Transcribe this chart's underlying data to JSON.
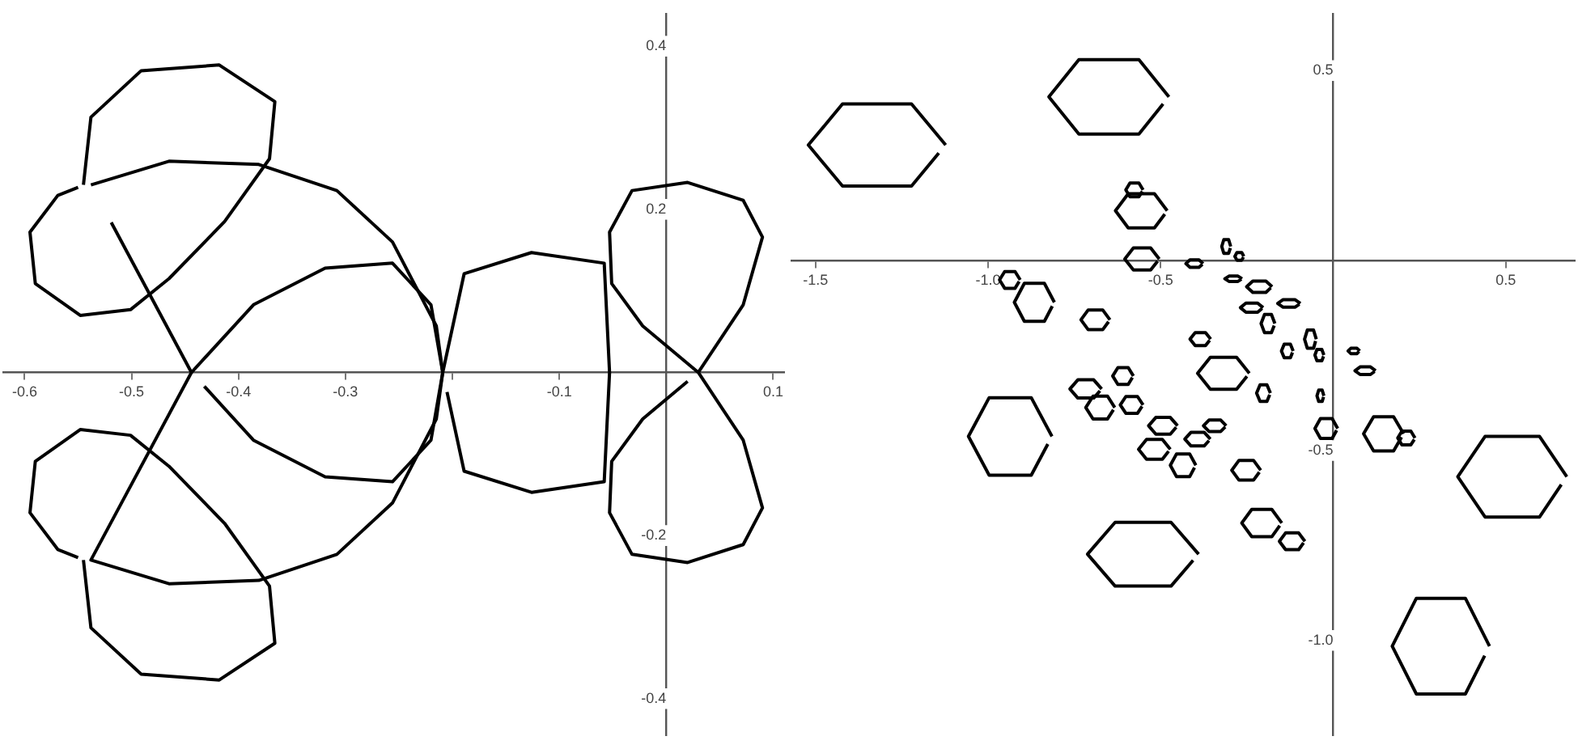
{
  "chart_data": [
    {
      "type": "line",
      "marker": "none",
      "xlim": [
        -0.62,
        0.11
      ],
      "ylim": [
        -0.445,
        0.44
      ],
      "xticks": [
        -0.6,
        -0.5,
        -0.4,
        -0.3,
        {
          "value": -0.2,
          "label": null
        },
        -0.1,
        0.1
      ],
      "yticks": [
        -0.4,
        -0.2,
        0.2,
        0.4
      ],
      "series": [
        {
          "color": "#000000",
          "x": [
            0.03,
            0.072,
            0.09,
            0.072,
            0.02,
            -0.032,
            -0.053,
            -0.051,
            -0.022,
            0.03,
            0.072,
            0.09,
            0.072,
            0.02,
            -0.032,
            -0.053,
            -0.051,
            -0.022,
            0.02
          ],
          "values": [
            0,
            0.083,
            0.166,
            0.211,
            0.233,
            0.223,
            0.172,
            0.109,
            0.057,
            0,
            -0.083,
            -0.166,
            -0.211,
            -0.233,
            -0.223,
            -0.172,
            -0.109,
            -0.057,
            -0.011
          ]
        },
        {
          "color": "#000000",
          "x": [
            -0.545,
            -0.538,
            -0.491,
            -0.418,
            -0.366,
            -0.371,
            -0.413,
            -0.465,
            -0.501,
            -0.548,
            -0.59,
            -0.595,
            -0.569,
            -0.55
          ],
          "values": [
            0.23,
            0.313,
            0.37,
            0.377,
            0.332,
            0.262,
            0.185,
            0.115,
            0.077,
            0.07,
            0.109,
            0.172,
            0.217,
            0.227
          ]
        },
        {
          "color": "#000000",
          "x": [
            -0.545,
            -0.538,
            -0.491,
            -0.418,
            -0.366,
            -0.371,
            -0.413,
            -0.465,
            -0.501,
            -0.548,
            -0.59,
            -0.595,
            -0.569,
            -0.55
          ],
          "values": [
            -0.23,
            -0.313,
            -0.37,
            -0.377,
            -0.332,
            -0.262,
            -0.185,
            -0.115,
            -0.077,
            -0.07,
            -0.109,
            -0.172,
            -0.217,
            -0.227
          ]
        },
        {
          "color": "#000000",
          "x": [
            -0.444,
            -0.386,
            -0.319,
            -0.256,
            -0.22,
            -0.209,
            -0.22,
            -0.256,
            -0.319,
            -0.386,
            -0.432
          ],
          "values": [
            0,
            0.083,
            0.128,
            0.134,
            0.083,
            0,
            -0.083,
            -0.134,
            -0.128,
            -0.083,
            -0.017
          ]
        },
        {
          "color": "#000000",
          "x": [
            -0.209,
            -0.189,
            -0.126,
            -0.058,
            -0.053,
            -0.058,
            -0.126,
            -0.189,
            -0.205
          ],
          "values": [
            0,
            0.121,
            0.147,
            0.134,
            0,
            -0.134,
            -0.147,
            -0.121,
            -0.024
          ]
        },
        {
          "color": "#000000",
          "x": [
            -0.538,
            -0.465,
            -0.381,
            -0.308,
            -0.256,
            -0.215,
            -0.209,
            -0.215,
            -0.256,
            -0.308,
            -0.381,
            -0.465,
            -0.538,
            -0.444,
            -0.519
          ],
          "values": [
            0.23,
            0.259,
            0.255,
            0.223,
            0.16,
            0.057,
            0,
            -0.057,
            -0.16,
            -0.223,
            -0.255,
            -0.259,
            -0.23,
            0,
            0.184
          ]
        }
      ]
    },
    {
      "type": "line",
      "marker": "none",
      "xlim": [
        -1.57,
        0.7
      ],
      "ylim": [
        -1.25,
        0.65
      ],
      "xticks": [
        -1.5,
        {
          "value": -1,
          "label": "-1.0"
        },
        -0.5,
        0.5
      ],
      "yticks": [
        0.5,
        -0.5,
        {
          "value": -1,
          "label": "-1.0"
        }
      ],
      "series": [
        {
          "color": "#000000",
          "x": [
            -1.123,
            -1.222,
            -1.422,
            -1.521,
            -1.422,
            -1.222,
            -1.143
          ],
          "values": [
            0.304,
            0.412,
            0.412,
            0.304,
            0.196,
            0.196,
            0.283
          ]
        },
        {
          "color": "#000000",
          "x": [
            -0.476,
            -0.563,
            -0.737,
            -0.824,
            -0.737,
            -0.563,
            -0.493
          ],
          "values": [
            0.431,
            0.529,
            0.529,
            0.431,
            0.333,
            0.333,
            0.412
          ]
        },
        {
          "color": "#000000",
          "x": [
            -0.815,
            -0.875,
            -0.997,
            -1.057,
            -0.997,
            -0.875,
            -0.827
          ],
          "values": [
            -0.463,
            -0.361,
            -0.361,
            -0.463,
            -0.565,
            -0.565,
            -0.483
          ]
        },
        {
          "color": "#000000",
          "x": [
            -0.39,
            -0.47,
            -0.632,
            -0.712,
            -0.632,
            -0.47,
            -0.406
          ],
          "values": [
            -0.773,
            -0.689,
            -0.689,
            -0.773,
            -0.857,
            -0.857,
            -0.789
          ]
        },
        {
          "color": "#000000",
          "x": [
            0.677,
            0.598,
            0.44,
            0.361,
            0.44,
            0.598,
            0.661
          ],
          "values": [
            -0.569,
            -0.463,
            -0.463,
            -0.569,
            -0.675,
            -0.675,
            -0.59
          ]
        },
        {
          "color": "#000000",
          "x": [
            0.453,
            0.383,
            0.241,
            0.171,
            0.241,
            0.383,
            0.439
          ],
          "values": [
            -1.015,
            -0.889,
            -0.889,
            -1.015,
            -1.141,
            -1.141,
            -1.04
          ]
        },
        {
          "color": "#000000",
          "x": [
            -0.481,
            -0.518,
            -0.594,
            -0.631,
            -0.594,
            -0.518,
            -0.488
          ],
          "values": [
            0.131,
            0.176,
            0.176,
            0.131,
            0.086,
            0.086,
            0.122
          ]
        },
        {
          "color": "#000000",
          "x": [
            -0.551,
            -0.563,
            -0.589,
            -0.601,
            -0.589,
            -0.563,
            -0.553
          ],
          "values": [
            0.186,
            0.204,
            0.204,
            0.186,
            0.168,
            0.168,
            0.182
          ]
        },
        {
          "color": "#000000",
          "x": [
            -0.504,
            -0.529,
            -0.579,
            -0.604,
            -0.579,
            -0.529,
            -0.509
          ],
          "values": [
            0.004,
            0.033,
            0.033,
            0.004,
            -0.025,
            -0.025,
            -0.002
          ]
        },
        {
          "color": "#000000",
          "x": [
            -0.808,
            -0.837,
            -0.895,
            -0.924,
            -0.895,
            -0.837,
            -0.814
          ],
          "values": [
            -0.11,
            -0.06,
            -0.06,
            -0.11,
            -0.16,
            -0.16,
            -0.12
          ]
        },
        {
          "color": "#000000",
          "x": [
            -0.647,
            -0.668,
            -0.71,
            -0.731,
            -0.71,
            -0.668,
            -0.651
          ],
          "values": [
            -0.156,
            -0.13,
            -0.13,
            -0.156,
            -0.182,
            -0.182,
            -0.161
          ]
        },
        {
          "color": "#000000",
          "x": [
            -0.243,
            -0.28,
            -0.356,
            -0.393,
            -0.356,
            -0.28,
            -0.25
          ],
          "values": [
            -0.297,
            -0.255,
            -0.255,
            -0.297,
            -0.339,
            -0.339,
            -0.305
          ]
        },
        {
          "color": "#000000",
          "x": [
            -0.907,
            -0.922,
            -0.952,
            -0.967,
            -0.952,
            -0.922,
            -0.91
          ],
          "values": [
            -0.051,
            -0.029,
            -0.029,
            -0.051,
            -0.073,
            -0.073,
            -0.055
          ]
        },
        {
          "color": "#000000",
          "x": [
            0.013,
            -0.003,
            -0.037,
            -0.053,
            -0.037,
            -0.003,
            0.01
          ],
          "values": [
            -0.442,
            -0.416,
            -0.416,
            -0.442,
            -0.468,
            -0.468,
            -0.447
          ]
        },
        {
          "color": "#000000",
          "x": [
            0.204,
            0.175,
            0.117,
            0.088,
            0.117,
            0.175,
            0.198
          ],
          "values": [
            -0.456,
            -0.411,
            -0.411,
            -0.456,
            -0.501,
            -0.501,
            -0.465
          ]
        },
        {
          "color": "#000000",
          "x": [
            0.237,
            0.225,
            0.199,
            0.187,
            0.199,
            0.225,
            0.235
          ],
          "values": [
            -0.467,
            -0.449,
            -0.449,
            -0.467,
            -0.485,
            -0.485,
            -0.471
          ]
        },
        {
          "color": "#000000",
          "x": [
            -0.21,
            -0.231,
            -0.273,
            -0.294,
            -0.273,
            -0.231,
            -0.214
          ],
          "values": [
            -0.552,
            -0.526,
            -0.526,
            -0.552,
            -0.578,
            -0.578,
            -0.557
          ]
        },
        {
          "color": "#000000",
          "x": [
            -0.149,
            -0.178,
            -0.236,
            -0.265,
            -0.236,
            -0.178,
            -0.155
          ],
          "values": [
            -0.691,
            -0.655,
            -0.655,
            -0.691,
            -0.727,
            -0.727,
            -0.698
          ]
        },
        {
          "color": "#000000",
          "x": [
            -0.082,
            -0.1,
            -0.138,
            -0.156,
            -0.138,
            -0.1,
            -0.086
          ],
          "values": [
            -0.739,
            -0.717,
            -0.717,
            -0.739,
            -0.761,
            -0.761,
            -0.743
          ]
        },
        {
          "color": "#000000",
          "x": [
            -0.671,
            -0.694,
            -0.74,
            -0.763,
            -0.74,
            -0.694,
            -0.676
          ],
          "values": [
            -0.338,
            -0.314,
            -0.314,
            -0.338,
            -0.362,
            -0.362,
            -0.343
          ]
        },
        {
          "color": "#000000",
          "x": [
            -0.633,
            -0.654,
            -0.696,
            -0.717,
            -0.696,
            -0.654,
            -0.637
          ],
          "values": [
            -0.387,
            -0.357,
            -0.357,
            -0.387,
            -0.417,
            -0.417,
            -0.393
          ]
        },
        {
          "color": "#000000",
          "x": [
            -0.551,
            -0.567,
            -0.601,
            -0.617,
            -0.601,
            -0.567,
            -0.554
          ],
          "values": [
            -0.38,
            -0.358,
            -0.358,
            -0.38,
            -0.402,
            -0.402,
            -0.384
          ]
        },
        {
          "color": "#000000",
          "x": [
            -0.579,
            -0.594,
            -0.624,
            -0.639,
            -0.624,
            -0.594,
            -0.582
          ],
          "values": [
            -0.304,
            -0.282,
            -0.282,
            -0.304,
            -0.326,
            -0.326,
            -0.308
          ]
        },
        {
          "color": "#000000",
          "x": [
            -0.451,
            -0.472,
            -0.514,
            -0.535,
            -0.514,
            -0.472,
            -0.455
          ],
          "values": [
            -0.435,
            -0.413,
            -0.413,
            -0.435,
            -0.457,
            -0.457,
            -0.439
          ]
        },
        {
          "color": "#000000",
          "x": [
            -0.472,
            -0.495,
            -0.541,
            -0.564,
            -0.541,
            -0.495,
            -0.477
          ],
          "values": [
            -0.497,
            -0.471,
            -0.471,
            -0.497,
            -0.523,
            -0.523,
            -0.502
          ]
        },
        {
          "color": "#000000",
          "x": [
            -0.398,
            -0.416,
            -0.454,
            -0.472,
            -0.454,
            -0.416,
            -0.402
          ],
          "values": [
            -0.539,
            -0.509,
            -0.509,
            -0.539,
            -0.569,
            -0.569,
            -0.545
          ]
        },
        {
          "color": "#000000",
          "x": [
            -0.356,
            -0.374,
            -0.412,
            -0.43,
            -0.412,
            -0.374,
            -0.36
          ],
          "values": [
            -0.47,
            -0.452,
            -0.452,
            -0.47,
            -0.488,
            -0.488,
            -0.474
          ]
        },
        {
          "color": "#000000",
          "x": [
            -0.31,
            -0.326,
            -0.36,
            -0.376,
            -0.36,
            -0.326,
            -0.313
          ],
          "values": [
            -0.435,
            -0.42,
            -0.42,
            -0.435,
            -0.45,
            -0.45,
            -0.438
          ]
        },
        {
          "color": "#000000",
          "x": [
            -0.377,
            -0.389,
            -0.415,
            -0.427,
            -0.415,
            -0.389,
            -0.379
          ],
          "values": [
            -0.008,
            0.002,
            0.002,
            -0.008,
            -0.018,
            -0.018,
            -0.01
          ]
        },
        {
          "color": "#000000",
          "x": [
            -0.297,
            -0.303,
            -0.317,
            -0.323,
            -0.317,
            -0.303,
            -0.298
          ],
          "values": [
            0.037,
            0.055,
            0.055,
            0.037,
            0.019,
            0.019,
            0.033
          ]
        },
        {
          "color": "#000000",
          "x": [
            -0.259,
            -0.265,
            -0.279,
            -0.285,
            -0.279,
            -0.265,
            -0.26
          ],
          "values": [
            0.011,
            0.021,
            0.021,
            0.011,
            0.001,
            0.001,
            0.009
          ]
        },
        {
          "color": "#000000",
          "x": [
            -0.264,
            -0.276,
            -0.302,
            -0.314,
            -0.302,
            -0.276,
            -0.266
          ],
          "values": [
            -0.048,
            -0.041,
            -0.041,
            -0.048,
            -0.055,
            -0.055,
            -0.049
          ]
        },
        {
          "color": "#000000",
          "x": [
            -0.177,
            -0.195,
            -0.233,
            -0.251,
            -0.233,
            -0.195,
            -0.181
          ],
          "values": [
            -0.069,
            -0.054,
            -0.054,
            -0.069,
            -0.084,
            -0.084,
            -0.072
          ]
        },
        {
          "color": "#000000",
          "x": [
            -0.203,
            -0.219,
            -0.253,
            -0.269,
            -0.253,
            -0.219,
            -0.206
          ],
          "values": [
            -0.124,
            -0.112,
            -0.112,
            -0.124,
            -0.136,
            -0.136,
            -0.126
          ]
        },
        {
          "color": "#000000",
          "x": [
            -0.169,
            -0.179,
            -0.199,
            -0.209,
            -0.199,
            -0.179,
            -0.171
          ],
          "values": [
            -0.166,
            -0.142,
            -0.142,
            -0.166,
            -0.19,
            -0.19,
            -0.171
          ]
        },
        {
          "color": "#000000",
          "x": [
            -0.095,
            -0.111,
            -0.145,
            -0.161,
            -0.145,
            -0.111,
            -0.098
          ],
          "values": [
            -0.113,
            -0.103,
            -0.103,
            -0.113,
            -0.123,
            -0.123,
            -0.115
          ]
        },
        {
          "color": "#000000",
          "x": [
            -0.049,
            -0.057,
            -0.075,
            -0.083,
            -0.075,
            -0.057,
            -0.051
          ],
          "values": [
            -0.207,
            -0.183,
            -0.183,
            -0.207,
            -0.231,
            -0.231,
            -0.212
          ]
        },
        {
          "color": "#000000",
          "x": [
            -0.116,
            -0.124,
            -0.142,
            -0.15,
            -0.142,
            -0.124,
            -0.118
          ],
          "values": [
            -0.238,
            -0.22,
            -0.22,
            -0.238,
            -0.256,
            -0.256,
            -0.242
          ]
        },
        {
          "color": "#000000",
          "x": [
            -0.027,
            -0.033,
            -0.047,
            -0.053,
            -0.047,
            -0.033,
            -0.028
          ],
          "values": [
            -0.249,
            -0.234,
            -0.234,
            -0.249,
            -0.264,
            -0.264,
            -0.252
          ]
        },
        {
          "color": "#000000",
          "x": [
            0.077,
            0.069,
            0.051,
            0.043,
            0.051,
            0.069,
            0.075
          ],
          "values": [
            -0.238,
            -0.231,
            -0.231,
            -0.238,
            -0.245,
            -0.245,
            -0.239
          ]
        },
        {
          "color": "#000000",
          "x": [
            0.123,
            0.108,
            0.078,
            0.063,
            0.078,
            0.108,
            0.12
          ],
          "values": [
            -0.29,
            -0.28,
            -0.28,
            -0.29,
            -0.3,
            -0.3,
            -0.292
          ]
        },
        {
          "color": "#000000",
          "x": [
            -0.027,
            -0.032,
            -0.042,
            -0.047,
            -0.042,
            -0.032,
            -0.028
          ],
          "values": [
            -0.356,
            -0.341,
            -0.341,
            -0.356,
            -0.371,
            -0.371,
            -0.359
          ]
        },
        {
          "color": "#000000",
          "x": [
            -0.355,
            -0.37,
            -0.4,
            -0.415,
            -0.4,
            -0.37,
            -0.358
          ],
          "values": [
            -0.207,
            -0.19,
            -0.19,
            -0.207,
            -0.224,
            -0.224,
            -0.21
          ]
        },
        {
          "color": "#000000",
          "x": [
            -0.182,
            -0.192,
            -0.212,
            -0.222,
            -0.212,
            -0.192,
            -0.184
          ],
          "values": [
            -0.349,
            -0.327,
            -0.327,
            -0.349,
            -0.371,
            -0.371,
            -0.353
          ]
        }
      ]
    }
  ]
}
